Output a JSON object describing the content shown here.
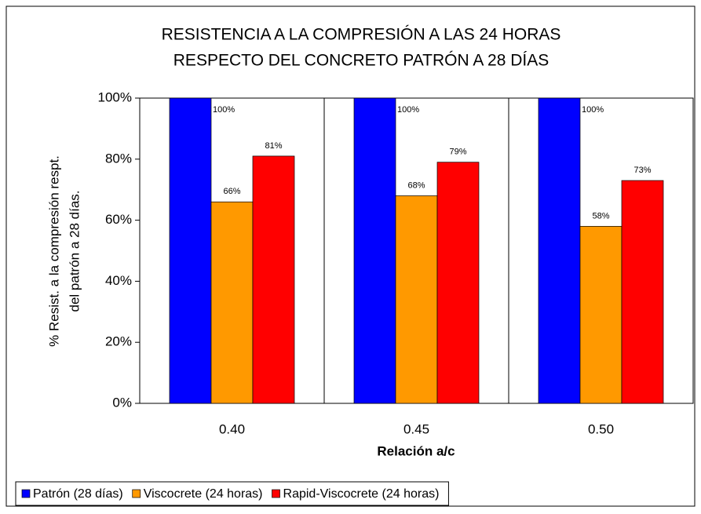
{
  "chart_data": {
    "type": "bar",
    "title": [
      "RESISTENCIA A LA COMPRESIÓN  A LAS 24 HORAS",
      "RESPECTO DEL CONCRETO PATRÓN A 28 DÍAS"
    ],
    "y_label": [
      "% Resist. a la compresión respt.",
      "del patrón a 28 días."
    ],
    "x_label": "Relación a/c",
    "categories": [
      "0.40",
      "0.45",
      "0.50"
    ],
    "series": [
      {
        "name": "Patrón (28 días)",
        "color": "#0000ff",
        "values": [
          100,
          100,
          100
        ],
        "value_labels": [
          "100%",
          "100%",
          "100%"
        ]
      },
      {
        "name": "Viscocrete (24 horas)",
        "color": "#ff9900",
        "values": [
          66,
          68,
          58
        ],
        "value_labels": [
          "66%",
          "68%",
          "58%"
        ]
      },
      {
        "name": "Rapid-Viscocrete (24 horas)",
        "color": "#ff0000",
        "values": [
          81,
          79,
          73
        ],
        "value_labels": [
          "81%",
          "79%",
          "73%"
        ]
      }
    ],
    "ylim": [
      0,
      100
    ],
    "yticks": [
      {
        "value": 0,
        "label": "0%"
      },
      {
        "value": 20,
        "label": "20%"
      },
      {
        "value": 40,
        "label": "40%"
      },
      {
        "value": 60,
        "label": "60%"
      },
      {
        "value": 80,
        "label": "80%"
      },
      {
        "value": 100,
        "label": "100%"
      }
    ],
    "legend": "bottom"
  }
}
